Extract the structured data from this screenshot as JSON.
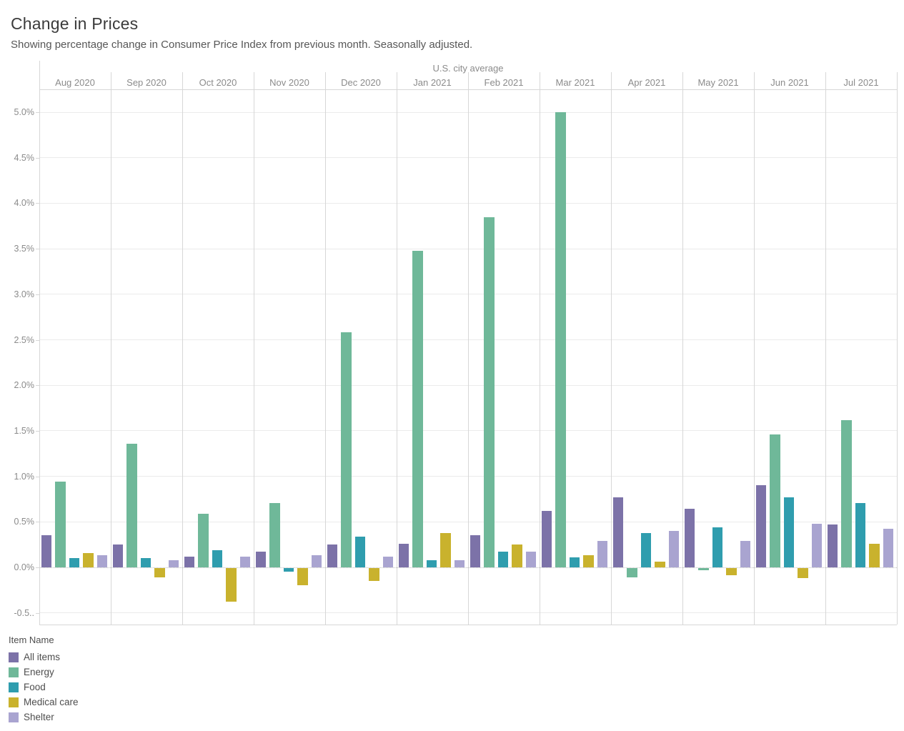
{
  "chart_data": {
    "type": "bar",
    "title": "Change in Prices",
    "subtitle": "Showing percentage change in Consumer Price Index from previous month. Seasonally adjusted.",
    "group_header": "U.S. city average",
    "legend_title": "Item Name",
    "categories": [
      "Aug 2020",
      "Sep 2020",
      "Oct 2020",
      "Nov 2020",
      "Dec 2020",
      "Jan 2021",
      "Feb 2021",
      "Mar 2021",
      "Apr 2021",
      "May 2021",
      "Jun 2021",
      "Jul 2021"
    ],
    "series": [
      {
        "name": "All items",
        "color": "#7c72a8",
        "values": [
          0.35,
          0.25,
          0.12,
          0.17,
          0.25,
          0.26,
          0.35,
          0.62,
          0.77,
          0.64,
          0.9,
          0.47
        ]
      },
      {
        "name": "Energy",
        "color": "#6fb899",
        "values": [
          0.94,
          1.36,
          0.59,
          0.71,
          2.58,
          3.48,
          3.85,
          5.0,
          -0.1,
          -0.02,
          1.46,
          1.62
        ]
      },
      {
        "name": "Food",
        "color": "#2f9dae",
        "values": [
          0.1,
          0.1,
          0.19,
          -0.04,
          0.34,
          0.08,
          0.17,
          0.11,
          0.38,
          0.44,
          0.77,
          0.71
        ]
      },
      {
        "name": "Medical care",
        "color": "#c9b22d",
        "values": [
          0.16,
          -0.1,
          -0.37,
          -0.19,
          -0.14,
          0.38,
          0.25,
          0.13,
          0.06,
          -0.08,
          -0.11,
          0.26
        ]
      },
      {
        "name": "Shelter",
        "color": "#a9a4d0",
        "values": [
          0.13,
          0.08,
          0.12,
          0.13,
          0.12,
          0.08,
          0.17,
          0.29,
          0.4,
          0.29,
          0.48,
          0.42
        ]
      }
    ],
    "xlabel": "",
    "ylabel": "",
    "ylim": [
      -0.55,
      5.25
    ],
    "y_tick_values": [
      5.0,
      4.5,
      4.0,
      3.5,
      3.0,
      2.5,
      2.0,
      1.5,
      1.0,
      0.5,
      0.0,
      -0.5
    ],
    "y_tick_labels": [
      "5.0%",
      "4.5%",
      "4.0%",
      "3.5%",
      "3.0%",
      "2.5%",
      "2.0%",
      "1.5%",
      "1.0%",
      "0.5%",
      "0.0%",
      "-0.5.."
    ],
    "grid": true,
    "legend_position": "bottom-left"
  }
}
